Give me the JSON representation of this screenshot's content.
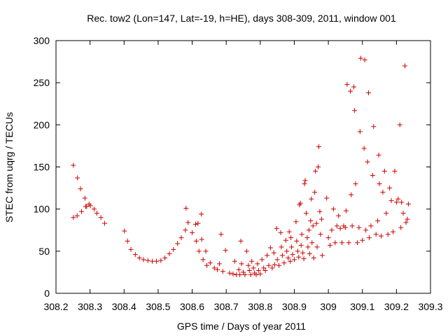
{
  "chart_data": {
    "type": "scatter",
    "title": "Rec. tow2 (Lon=147, Lat=-19, h=HE), days 308-309, 2011, window 001",
    "xlabel": "GPS time / Days of year 2011",
    "ylabel": "STEC from uqrg / TECUs",
    "xlim": [
      308.2,
      309.3
    ],
    "ylim": [
      0,
      300
    ],
    "xticks": [
      "308.2",
      "308.3",
      "308.4",
      "308.5",
      "308.6",
      "308.7",
      "308.8",
      "308.9",
      "309",
      "309.1",
      "309.2",
      "309.3"
    ],
    "yticks": [
      "0",
      "50",
      "100",
      "150",
      "200",
      "250",
      "300"
    ],
    "grid": false,
    "marker": "plus",
    "color": "#cc0000",
    "points": [
      [
        308.251,
        152
      ],
      [
        308.263,
        137
      ],
      [
        308.272,
        124
      ],
      [
        308.285,
        113
      ],
      [
        308.29,
        103
      ],
      [
        308.297,
        106
      ],
      [
        308.301,
        104
      ],
      [
        308.312,
        100
      ],
      [
        308.32,
        95
      ],
      [
        308.332,
        90
      ],
      [
        308.343,
        83
      ],
      [
        308.251,
        90
      ],
      [
        308.262,
        92
      ],
      [
        308.275,
        97
      ],
      [
        308.287,
        103
      ],
      [
        308.401,
        74
      ],
      [
        308.41,
        62
      ],
      [
        308.42,
        52
      ],
      [
        308.433,
        46
      ],
      [
        308.445,
        42
      ],
      [
        308.457,
        40
      ],
      [
        308.47,
        39
      ],
      [
        308.483,
        38
      ],
      [
        308.495,
        38
      ],
      [
        308.508,
        39
      ],
      [
        308.52,
        42
      ],
      [
        308.533,
        47
      ],
      [
        308.545,
        52
      ],
      [
        308.557,
        59
      ],
      [
        308.568,
        66
      ],
      [
        308.58,
        75
      ],
      [
        308.588,
        84
      ],
      [
        308.582,
        101
      ],
      [
        308.6,
        72
      ],
      [
        308.612,
        62
      ],
      [
        308.62,
        50
      ],
      [
        308.61,
        82
      ],
      [
        308.617,
        83
      ],
      [
        308.627,
        94
      ],
      [
        308.628,
        64
      ],
      [
        308.632,
        40
      ],
      [
        308.643,
        33
      ],
      [
        308.64,
        50
      ],
      [
        308.653,
        36
      ],
      [
        308.665,
        30
      ],
      [
        308.674,
        28
      ],
      [
        308.68,
        35
      ],
      [
        308.685,
        70
      ],
      [
        308.69,
        26
      ],
      [
        308.698,
        51
      ],
      [
        308.71,
        24
      ],
      [
        308.72,
        23
      ],
      [
        308.725,
        38
      ],
      [
        308.73,
        22
      ],
      [
        308.737,
        28
      ],
      [
        308.74,
        22
      ],
      [
        308.743,
        62
      ],
      [
        308.745,
        35
      ],
      [
        308.75,
        25
      ],
      [
        308.755,
        22
      ],
      [
        308.76,
        50
      ],
      [
        308.765,
        33
      ],
      [
        308.768,
        27
      ],
      [
        308.772,
        22
      ],
      [
        308.775,
        38
      ],
      [
        308.78,
        30
      ],
      [
        308.783,
        24
      ],
      [
        308.788,
        22
      ],
      [
        308.792,
        35
      ],
      [
        308.795,
        27
      ],
      [
        308.8,
        23
      ],
      [
        308.805,
        40
      ],
      [
        308.81,
        30
      ],
      [
        308.815,
        27
      ],
      [
        308.82,
        45
      ],
      [
        308.825,
        33
      ],
      [
        308.83,
        54
      ],
      [
        308.835,
        30
      ],
      [
        308.84,
        48
      ],
      [
        308.842,
        34
      ],
      [
        308.848,
        77
      ],
      [
        308.85,
        40
      ],
      [
        308.855,
        33
      ],
      [
        308.86,
        72
      ],
      [
        308.862,
        55
      ],
      [
        308.865,
        45
      ],
      [
        308.87,
        36
      ],
      [
        308.875,
        63
      ],
      [
        308.878,
        50
      ],
      [
        308.882,
        42
      ],
      [
        308.885,
        73
      ],
      [
        308.888,
        38
      ],
      [
        308.89,
        66
      ],
      [
        308.892,
        55
      ],
      [
        308.895,
        46
      ],
      [
        308.9,
        40
      ],
      [
        308.905,
        85
      ],
      [
        308.907,
        62
      ],
      [
        308.91,
        50
      ],
      [
        308.913,
        43
      ],
      [
        308.915,
        105
      ],
      [
        308.918,
        107
      ],
      [
        308.92,
        57
      ],
      [
        308.922,
        70
      ],
      [
        308.925,
        48
      ],
      [
        308.928,
        41
      ],
      [
        308.93,
        130
      ],
      [
        308.932,
        134
      ],
      [
        308.935,
        95
      ],
      [
        308.938,
        66
      ],
      [
        308.94,
        55
      ],
      [
        308.943,
        75
      ],
      [
        308.945,
        47
      ],
      [
        308.948,
        86
      ],
      [
        308.95,
        112
      ],
      [
        308.952,
        60
      ],
      [
        308.955,
        80
      ],
      [
        308.957,
        42
      ],
      [
        308.96,
        120
      ],
      [
        308.962,
        145
      ],
      [
        308.965,
        83
      ],
      [
        308.967,
        55
      ],
      [
        308.97,
        150
      ],
      [
        308.972,
        174
      ],
      [
        308.975,
        97
      ],
      [
        308.977,
        70
      ],
      [
        308.98,
        88
      ],
      [
        308.982,
        45
      ],
      [
        308.995,
        113
      ],
      [
        309.0,
        66
      ],
      [
        309.005,
        57
      ],
      [
        309.01,
        75
      ],
      [
        309.015,
        100
      ],
      [
        309.02,
        60
      ],
      [
        309.025,
        80
      ],
      [
        309.03,
        92
      ],
      [
        309.035,
        77
      ],
      [
        309.04,
        60
      ],
      [
        309.045,
        80
      ],
      [
        309.05,
        78
      ],
      [
        309.052,
        98
      ],
      [
        309.055,
        248
      ],
      [
        309.06,
        60
      ],
      [
        309.065,
        240
      ],
      [
        309.067,
        117
      ],
      [
        309.07,
        80
      ],
      [
        309.075,
        245
      ],
      [
        309.077,
        217
      ],
      [
        309.08,
        130
      ],
      [
        309.085,
        60
      ],
      [
        309.09,
        78
      ],
      [
        309.093,
        192
      ],
      [
        309.095,
        279
      ],
      [
        309.1,
        63
      ],
      [
        309.105,
        172
      ],
      [
        309.107,
        277
      ],
      [
        309.11,
        75
      ],
      [
        309.115,
        156
      ],
      [
        309.118,
        238
      ],
      [
        309.12,
        66
      ],
      [
        309.125,
        80
      ],
      [
        309.13,
        140
      ],
      [
        309.133,
        198
      ],
      [
        309.14,
        70
      ],
      [
        309.145,
        86
      ],
      [
        309.148,
        164
      ],
      [
        309.15,
        130
      ],
      [
        309.155,
        68
      ],
      [
        309.16,
        120
      ],
      [
        309.165,
        145
      ],
      [
        309.17,
        95
      ],
      [
        309.175,
        70
      ],
      [
        309.18,
        125
      ],
      [
        309.185,
        110
      ],
      [
        309.19,
        73
      ],
      [
        309.195,
        145
      ],
      [
        309.2,
        108
      ],
      [
        309.205,
        112
      ],
      [
        309.21,
        200
      ],
      [
        309.213,
        78
      ],
      [
        309.215,
        108
      ],
      [
        309.22,
        95
      ],
      [
        309.225,
        270
      ],
      [
        309.228,
        84
      ],
      [
        309.232,
        88
      ],
      [
        309.235,
        106
      ]
    ]
  }
}
